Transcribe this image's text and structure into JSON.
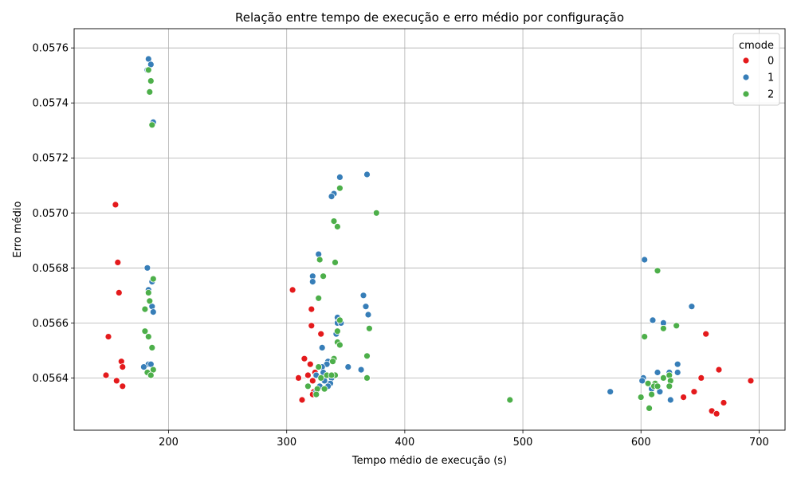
{
  "chart_data": {
    "type": "scatter",
    "title": "Relação entre tempo de execução e erro médio por configuração",
    "xlabel": "Tempo médio de execução (s)",
    "ylabel": "Erro médio",
    "xlim": [
      120,
      722
    ],
    "ylim": [
      0.05621,
      0.05767
    ],
    "xticks": [
      200,
      300,
      400,
      500,
      600,
      700
    ],
    "yticks": [
      0.0564,
      0.0566,
      0.0568,
      0.057,
      0.0572,
      0.0574,
      0.0576
    ],
    "xtick_labels": [
      "200",
      "300",
      "400",
      "500",
      "600",
      "700"
    ],
    "ytick_labels": [
      "0.0564",
      "0.0566",
      "0.0568",
      "0.0570",
      "0.0572",
      "0.0574",
      "0.0576"
    ],
    "grid": true,
    "legend": {
      "title": "cmode",
      "position": "top-right"
    },
    "series": [
      {
        "name": "0",
        "color": "#e41a1c",
        "points": [
          [
            155,
            0.05703
          ],
          [
            157,
            0.05682
          ],
          [
            158,
            0.05671
          ],
          [
            149,
            0.05655
          ],
          [
            160,
            0.05646
          ],
          [
            161,
            0.05644
          ],
          [
            147,
            0.05641
          ],
          [
            156,
            0.05639
          ],
          [
            161,
            0.05637
          ],
          [
            305,
            0.05672
          ],
          [
            321,
            0.05665
          ],
          [
            321,
            0.05659
          ],
          [
            329,
            0.05656
          ],
          [
            315,
            0.05647
          ],
          [
            320,
            0.05645
          ],
          [
            324,
            0.05642
          ],
          [
            318,
            0.05641
          ],
          [
            310,
            0.0564
          ],
          [
            322,
            0.05639
          ],
          [
            318,
            0.05637
          ],
          [
            323,
            0.05635
          ],
          [
            322,
            0.05634
          ],
          [
            313,
            0.05632
          ],
          [
            655,
            0.05656
          ],
          [
            666,
            0.05643
          ],
          [
            651,
            0.0564
          ],
          [
            693,
            0.05639
          ],
          [
            645,
            0.05635
          ],
          [
            636,
            0.05633
          ],
          [
            670,
            0.05631
          ],
          [
            660,
            0.05628
          ],
          [
            664,
            0.05627
          ]
        ]
      },
      {
        "name": "1",
        "color": "#377eb8",
        "points": [
          [
            183,
            0.05756
          ],
          [
            185,
            0.05754
          ],
          [
            182,
            0.05752
          ],
          [
            187,
            0.05733
          ],
          [
            182,
            0.0568
          ],
          [
            186,
            0.05675
          ],
          [
            183,
            0.05672
          ],
          [
            186,
            0.05666
          ],
          [
            187,
            0.05664
          ],
          [
            183,
            0.05645
          ],
          [
            185,
            0.05645
          ],
          [
            179,
            0.05644
          ],
          [
            345,
            0.05713
          ],
          [
            368,
            0.05714
          ],
          [
            340,
            0.05707
          ],
          [
            338,
            0.05706
          ],
          [
            327,
            0.05685
          ],
          [
            322,
            0.05677
          ],
          [
            322,
            0.05675
          ],
          [
            365,
            0.0567
          ],
          [
            367,
            0.05666
          ],
          [
            369,
            0.05663
          ],
          [
            343,
            0.05662
          ],
          [
            345,
            0.05661
          ],
          [
            343,
            0.0566
          ],
          [
            346,
            0.0566
          ],
          [
            342,
            0.05656
          ],
          [
            330,
            0.05651
          ],
          [
            335,
            0.05646
          ],
          [
            334,
            0.05645
          ],
          [
            330,
            0.05644
          ],
          [
            352,
            0.05644
          ],
          [
            363,
            0.05643
          ],
          [
            331,
            0.05642
          ],
          [
            325,
            0.05641
          ],
          [
            338,
            0.0564
          ],
          [
            332,
            0.05639
          ],
          [
            337,
            0.05638
          ],
          [
            328,
            0.05637
          ],
          [
            335,
            0.05637
          ],
          [
            325,
            0.05635
          ],
          [
            603,
            0.05683
          ],
          [
            643,
            0.05666
          ],
          [
            610,
            0.05661
          ],
          [
            619,
            0.0566
          ],
          [
            631,
            0.05645
          ],
          [
            614,
            0.05642
          ],
          [
            624,
            0.05642
          ],
          [
            631,
            0.05642
          ],
          [
            602,
            0.0564
          ],
          [
            601,
            0.05639
          ],
          [
            609,
            0.05636
          ],
          [
            616,
            0.05635
          ],
          [
            574,
            0.05635
          ],
          [
            625,
            0.05632
          ]
        ]
      },
      {
        "name": "2",
        "color": "#4daf4a",
        "points": [
          [
            183,
            0.05752
          ],
          [
            185,
            0.05748
          ],
          [
            184,
            0.05744
          ],
          [
            186,
            0.05732
          ],
          [
            187,
            0.05676
          ],
          [
            183,
            0.05671
          ],
          [
            184,
            0.05668
          ],
          [
            180,
            0.05665
          ],
          [
            180,
            0.05657
          ],
          [
            183,
            0.05655
          ],
          [
            186,
            0.05651
          ],
          [
            187,
            0.05643
          ],
          [
            182,
            0.05642
          ],
          [
            185,
            0.05641
          ],
          [
            345,
            0.05709
          ],
          [
            376,
            0.057
          ],
          [
            340,
            0.05697
          ],
          [
            343,
            0.05695
          ],
          [
            328,
            0.05683
          ],
          [
            341,
            0.05682
          ],
          [
            331,
            0.05677
          ],
          [
            327,
            0.05669
          ],
          [
            345,
            0.05661
          ],
          [
            370,
            0.05658
          ],
          [
            343,
            0.05657
          ],
          [
            343,
            0.05653
          ],
          [
            345,
            0.05652
          ],
          [
            368,
            0.05648
          ],
          [
            340,
            0.05647
          ],
          [
            339,
            0.05646
          ],
          [
            327,
            0.05644
          ],
          [
            334,
            0.05641
          ],
          [
            341,
            0.05641
          ],
          [
            338,
            0.05641
          ],
          [
            368,
            0.0564
          ],
          [
            329,
            0.0564
          ],
          [
            318,
            0.05637
          ],
          [
            326,
            0.05636
          ],
          [
            332,
            0.05636
          ],
          [
            325,
            0.05634
          ],
          [
            489,
            0.05632
          ],
          [
            614,
            0.05679
          ],
          [
            630,
            0.05659
          ],
          [
            619,
            0.05658
          ],
          [
            603,
            0.05655
          ],
          [
            624,
            0.05641
          ],
          [
            619,
            0.0564
          ],
          [
            625,
            0.05639
          ],
          [
            612,
            0.05638
          ],
          [
            606,
            0.05638
          ],
          [
            611,
            0.05637
          ],
          [
            614,
            0.05637
          ],
          [
            624,
            0.05637
          ],
          [
            609,
            0.05634
          ],
          [
            600,
            0.05633
          ],
          [
            607,
            0.05629
          ]
        ]
      }
    ]
  }
}
